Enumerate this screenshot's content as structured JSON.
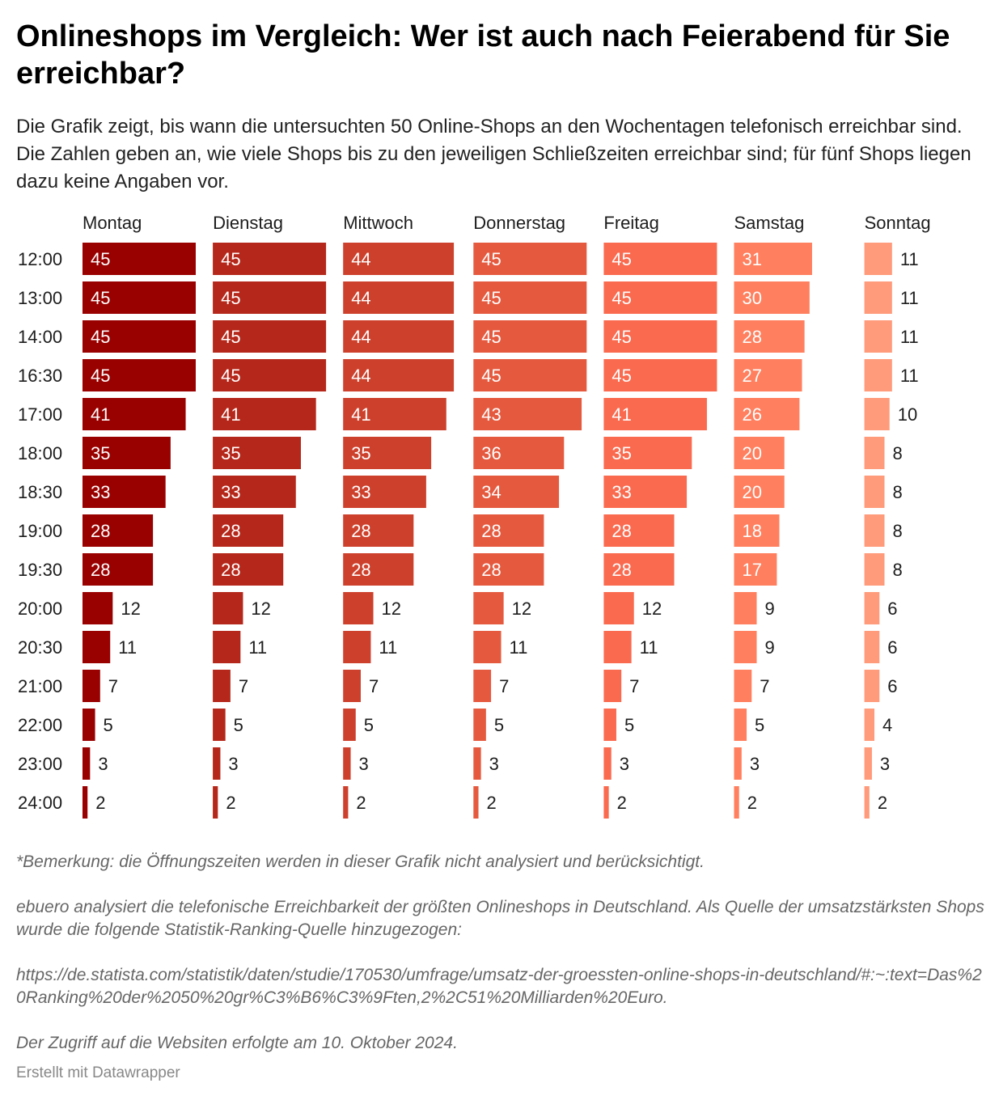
{
  "chart_data": {
    "type": "bar",
    "orientation": "horizontal",
    "layout": "small-multiples",
    "title": "Onlineshops im Vergleich: Wer ist auch nach Feierabend für Sie erreichbar?",
    "subtitle": "Die Grafik zeigt, bis wann die untersuchten 50 Online-Shops an den Wochentagen telefonisch erreichbar sind. Die Zahlen geben an, wie viele Shops bis zu den jeweiligen Schließzeiten erreichbar sind; für fünf Shops liegen dazu keine Angaben vor.",
    "categories": [
      "12:00",
      "13:00",
      "14:00",
      "16:30",
      "17:00",
      "18:00",
      "18:30",
      "19:00",
      "19:30",
      "20:00",
      "20:30",
      "21:00",
      "22:00",
      "23:00",
      "24:00"
    ],
    "xlim": [
      0,
      45
    ],
    "series": [
      {
        "name": "Montag",
        "color": "#990000",
        "values": [
          45,
          45,
          45,
          45,
          41,
          35,
          33,
          28,
          28,
          12,
          11,
          7,
          5,
          3,
          2
        ]
      },
      {
        "name": "Dienstag",
        "color": "#b5271a",
        "values": [
          45,
          45,
          45,
          45,
          41,
          35,
          33,
          28,
          28,
          12,
          11,
          7,
          5,
          3,
          2
        ]
      },
      {
        "name": "Mittwoch",
        "color": "#cd402c",
        "values": [
          44,
          44,
          44,
          44,
          41,
          35,
          33,
          28,
          28,
          12,
          11,
          7,
          5,
          3,
          2
        ]
      },
      {
        "name": "Donnerstag",
        "color": "#e55a3f",
        "values": [
          45,
          45,
          45,
          45,
          43,
          36,
          34,
          28,
          28,
          12,
          11,
          7,
          5,
          3,
          2
        ]
      },
      {
        "name": "Freitag",
        "color": "#fa6a4f",
        "values": [
          45,
          45,
          45,
          45,
          41,
          35,
          33,
          28,
          28,
          12,
          11,
          7,
          5,
          3,
          2
        ]
      },
      {
        "name": "Samstag",
        "color": "#ff7f5e",
        "values": [
          31,
          30,
          28,
          27,
          26,
          20,
          20,
          18,
          17,
          9,
          9,
          7,
          5,
          3,
          2
        ]
      },
      {
        "name": "Sonntag",
        "color": "#ff9a7a",
        "values": [
          11,
          11,
          11,
          11,
          10,
          8,
          8,
          8,
          8,
          6,
          6,
          6,
          4,
          3,
          2
        ]
      }
    ]
  },
  "notes": {
    "note1": "*Bemerkung: die Öffnungszeiten werden in dieser Grafik nicht analysiert und berücksichtigt.",
    "note2": "ebuero analysiert die telefonische Erreichbarkeit der größten Onlineshops in Deutschland. Als Quelle der umsatzstärksten Shops wurde die folgende Statistik-Ranking-Quelle hinzugezogen:",
    "note3": "https://de.statista.com/statistik/daten/studie/170530/umfrage/umsatz-der-groessten-online-shops-in-deutschland/#:~:text=Das%20Ranking%20der%2050%20gr%C3%B6%C3%9Ften,2%2C51%20Milliarden%20Euro.",
    "note4": "Der Zugriff auf die Websiten erfolgte am 10. Oktober 2024."
  },
  "credit": "Erstellt mit Datawrapper"
}
